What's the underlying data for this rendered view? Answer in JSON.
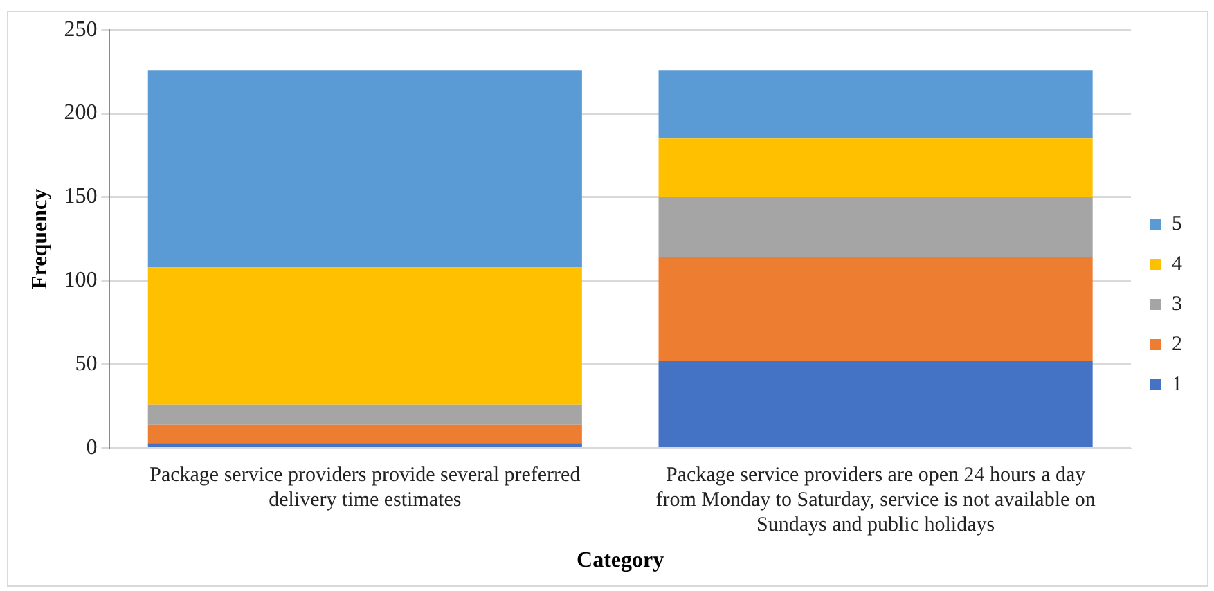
{
  "chart_data": {
    "type": "bar",
    "stacked": true,
    "xlabel": "Category",
    "ylabel": "Frequency",
    "categories": [
      "Package service providers provide several preferred delivery time estimates",
      "Package service providers are open 24 hours a day from Monday to Saturday, service is not available on Sundays and public holidays"
    ],
    "series": [
      {
        "name": "1",
        "color": "#4472c4",
        "values": [
          3,
          52
        ]
      },
      {
        "name": "2",
        "color": "#ed7d31",
        "values": [
          11,
          62
        ]
      },
      {
        "name": "3",
        "color": "#a5a5a5",
        "values": [
          12,
          36
        ]
      },
      {
        "name": "4",
        "color": "#ffc000",
        "values": [
          82,
          35
        ]
      },
      {
        "name": "5",
        "color": "#5b9bd5",
        "values": [
          118,
          41
        ]
      }
    ],
    "ylim": [
      0,
      250
    ],
    "yticks": [
      0,
      50,
      100,
      150,
      200,
      250
    ],
    "grid": "y",
    "legend": "right"
  }
}
